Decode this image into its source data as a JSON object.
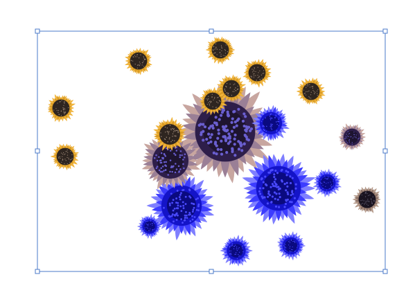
{
  "selection": {
    "stroke_color": "#4a78c9",
    "handle_fill": "#ffffff"
  },
  "palettes": {
    "yellow": {
      "petal": "#f0b43c",
      "petal_dark": "#d99a22",
      "center": "#2e2520",
      "seeds": "#a08a78"
    },
    "blue": {
      "petal": "#7f7fff",
      "petal_dark": "#3c3cff",
      "center": "#1414c8",
      "inner": "#0a0a80",
      "seeds": "#4a4aff"
    },
    "dusty": {
      "petal": "#c8a6a0",
      "petal_dark": "#9a7f96",
      "center": "#2e1e4a",
      "inner": "#1e1430",
      "seeds": "#6a5fd0"
    },
    "dark": {
      "petal": "#b59a8a",
      "petal_dark": "#8a7065",
      "center": "#1a1420",
      "seeds": "#6f6a80"
    }
  },
  "icons": [
    "sunflower-icon"
  ]
}
